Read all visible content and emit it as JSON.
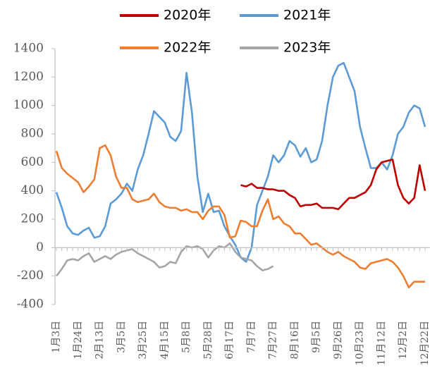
{
  "chart_data": {
    "type": "line",
    "categories": [
      "1月3日",
      null,
      null,
      null,
      "1月24日",
      null,
      null,
      null,
      "2月13日",
      null,
      null,
      null,
      "3月5日",
      null,
      null,
      null,
      "3月25日",
      null,
      null,
      null,
      "4月15日",
      null,
      null,
      null,
      "5月8日",
      null,
      null,
      null,
      "5月28日",
      null,
      null,
      null,
      "6月17日",
      null,
      null,
      null,
      "7月7日",
      null,
      null,
      null,
      "7月27日",
      null,
      null,
      null,
      "8月16日",
      null,
      null,
      null,
      "9月5日",
      null,
      null,
      null,
      "9月26日",
      null,
      null,
      null,
      "10月23日",
      null,
      null,
      null,
      "11月12日",
      null,
      null,
      null,
      "12月2日",
      null,
      null,
      null,
      "12月22日"
    ],
    "series": [
      {
        "name": "2020年",
        "color": "#c00000",
        "values": [
          null,
          null,
          null,
          null,
          null,
          null,
          null,
          null,
          null,
          null,
          null,
          null,
          null,
          null,
          null,
          null,
          null,
          null,
          null,
          null,
          null,
          null,
          null,
          null,
          null,
          null,
          null,
          null,
          null,
          null,
          null,
          null,
          null,
          null,
          440,
          430,
          450,
          420,
          420,
          410,
          410,
          400,
          400,
          370,
          350,
          290,
          300,
          300,
          310,
          280,
          280,
          280,
          270,
          310,
          350,
          350,
          370,
          390,
          440,
          550,
          600,
          610,
          620,
          440,
          350,
          310,
          350,
          580,
          400
        ]
      },
      {
        "name": "2021年",
        "color": "#5b9bd5",
        "values": [
          390,
          280,
          150,
          100,
          90,
          120,
          140,
          70,
          80,
          150,
          310,
          340,
          380,
          450,
          400,
          550,
          650,
          800,
          960,
          920,
          880,
          780,
          750,
          820,
          1230,
          950,
          500,
          250,
          380,
          250,
          260,
          150,
          80,
          20,
          -70,
          -100,
          0,
          300,
          400,
          500,
          650,
          600,
          650,
          750,
          720,
          640,
          700,
          600,
          620,
          750,
          1000,
          1200,
          1280,
          1300,
          1200,
          1100,
          850,
          700,
          560,
          560,
          600,
          550,
          650,
          800,
          850,
          950,
          1000,
          980,
          850
        ]
      },
      {
        "name": "2022年",
        "color": "#ed7d31",
        "values": [
          680,
          560,
          520,
          490,
          460,
          390,
          430,
          480,
          700,
          720,
          650,
          500,
          420,
          420,
          340,
          320,
          330,
          340,
          380,
          320,
          290,
          280,
          280,
          260,
          270,
          250,
          250,
          200,
          260,
          290,
          290,
          230,
          70,
          80,
          190,
          180,
          150,
          150,
          260,
          340,
          200,
          220,
          170,
          150,
          100,
          100,
          60,
          20,
          30,
          0,
          -30,
          -50,
          -30,
          -60,
          -80,
          -100,
          -140,
          -150,
          -110,
          -100,
          -90,
          -80,
          -100,
          -140,
          -200,
          -280,
          -240,
          -240,
          -240
        ]
      },
      {
        "name": "2023年",
        "color": "#a5a5a5",
        "values": [
          -200,
          -150,
          -90,
          -80,
          -90,
          -60,
          -40,
          -100,
          -80,
          -60,
          -80,
          -50,
          -30,
          -20,
          -10,
          -40,
          -60,
          -80,
          -100,
          -140,
          -130,
          -100,
          -110,
          -30,
          10,
          0,
          10,
          -10,
          -70,
          -20,
          10,
          0,
          30,
          -30,
          -70,
          -80,
          -90,
          -130,
          -160,
          -150,
          -130,
          null,
          null,
          null,
          null,
          null,
          null,
          null,
          null,
          null,
          null,
          null,
          null,
          null,
          null,
          null,
          null,
          null,
          null,
          null,
          null,
          null,
          null,
          null,
          null,
          null,
          null,
          null,
          null
        ]
      }
    ],
    "ylim": [
      -400,
      1400
    ],
    "yticks": [
      -400,
      -200,
      0,
      200,
      400,
      600,
      800,
      1000,
      1200,
      1400
    ],
    "grid": false
  }
}
